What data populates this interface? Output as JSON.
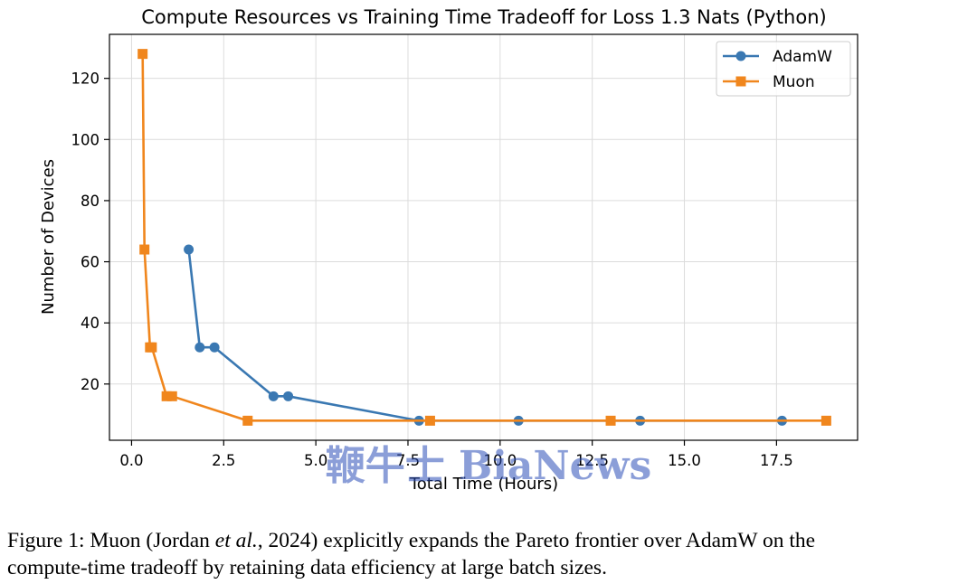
{
  "chart_data": {
    "type": "line",
    "title": "Compute Resources vs Training Time Tradeoff for Loss 1.3 Nats (Python)",
    "xlabel": "Total Time (Hours)",
    "ylabel": "Number of Devices",
    "xlim": [
      -0.6,
      19.7
    ],
    "ylim": [
      1.6,
      134.4
    ],
    "xticks": [
      0.0,
      2.5,
      5.0,
      7.5,
      10.0,
      12.5,
      15.0,
      17.5
    ],
    "xtick_labels": [
      "0.0",
      "2.5",
      "5.0",
      "7.5",
      "10.0",
      "12.5",
      "15.0",
      "17.5"
    ],
    "yticks": [
      20,
      40,
      60,
      80,
      100,
      120
    ],
    "ytick_labels": [
      "20",
      "40",
      "60",
      "80",
      "100",
      "120"
    ],
    "grid": true,
    "legend_position": "top-right",
    "series": [
      {
        "name": "AdamW",
        "color": "#3a78b2",
        "marker": "circle",
        "x": [
          1.55,
          1.85,
          2.25,
          3.85,
          4.25,
          7.8,
          10.5,
          13.8,
          17.65
        ],
        "y": [
          64,
          32,
          32,
          16,
          16,
          8,
          8,
          8,
          8
        ]
      },
      {
        "name": "Muon",
        "color": "#f0861d",
        "marker": "square",
        "x": [
          0.3,
          0.35,
          0.5,
          0.55,
          0.95,
          1.1,
          3.15,
          8.1,
          13.0,
          18.85
        ],
        "y": [
          128,
          64,
          32,
          32,
          16,
          16,
          8,
          8,
          8,
          8
        ]
      }
    ]
  },
  "watermark": {
    "text": "鞭牛士 BiaNews"
  },
  "caption": {
    "prefix": "Figure 1: Muon (Jordan ",
    "etal": "et al.",
    "rest_line1": ", 2024) explicitly expands the Pareto frontier over AdamW on the",
    "line2": "compute-time tradeoff by retaining data efficiency at large batch sizes."
  }
}
